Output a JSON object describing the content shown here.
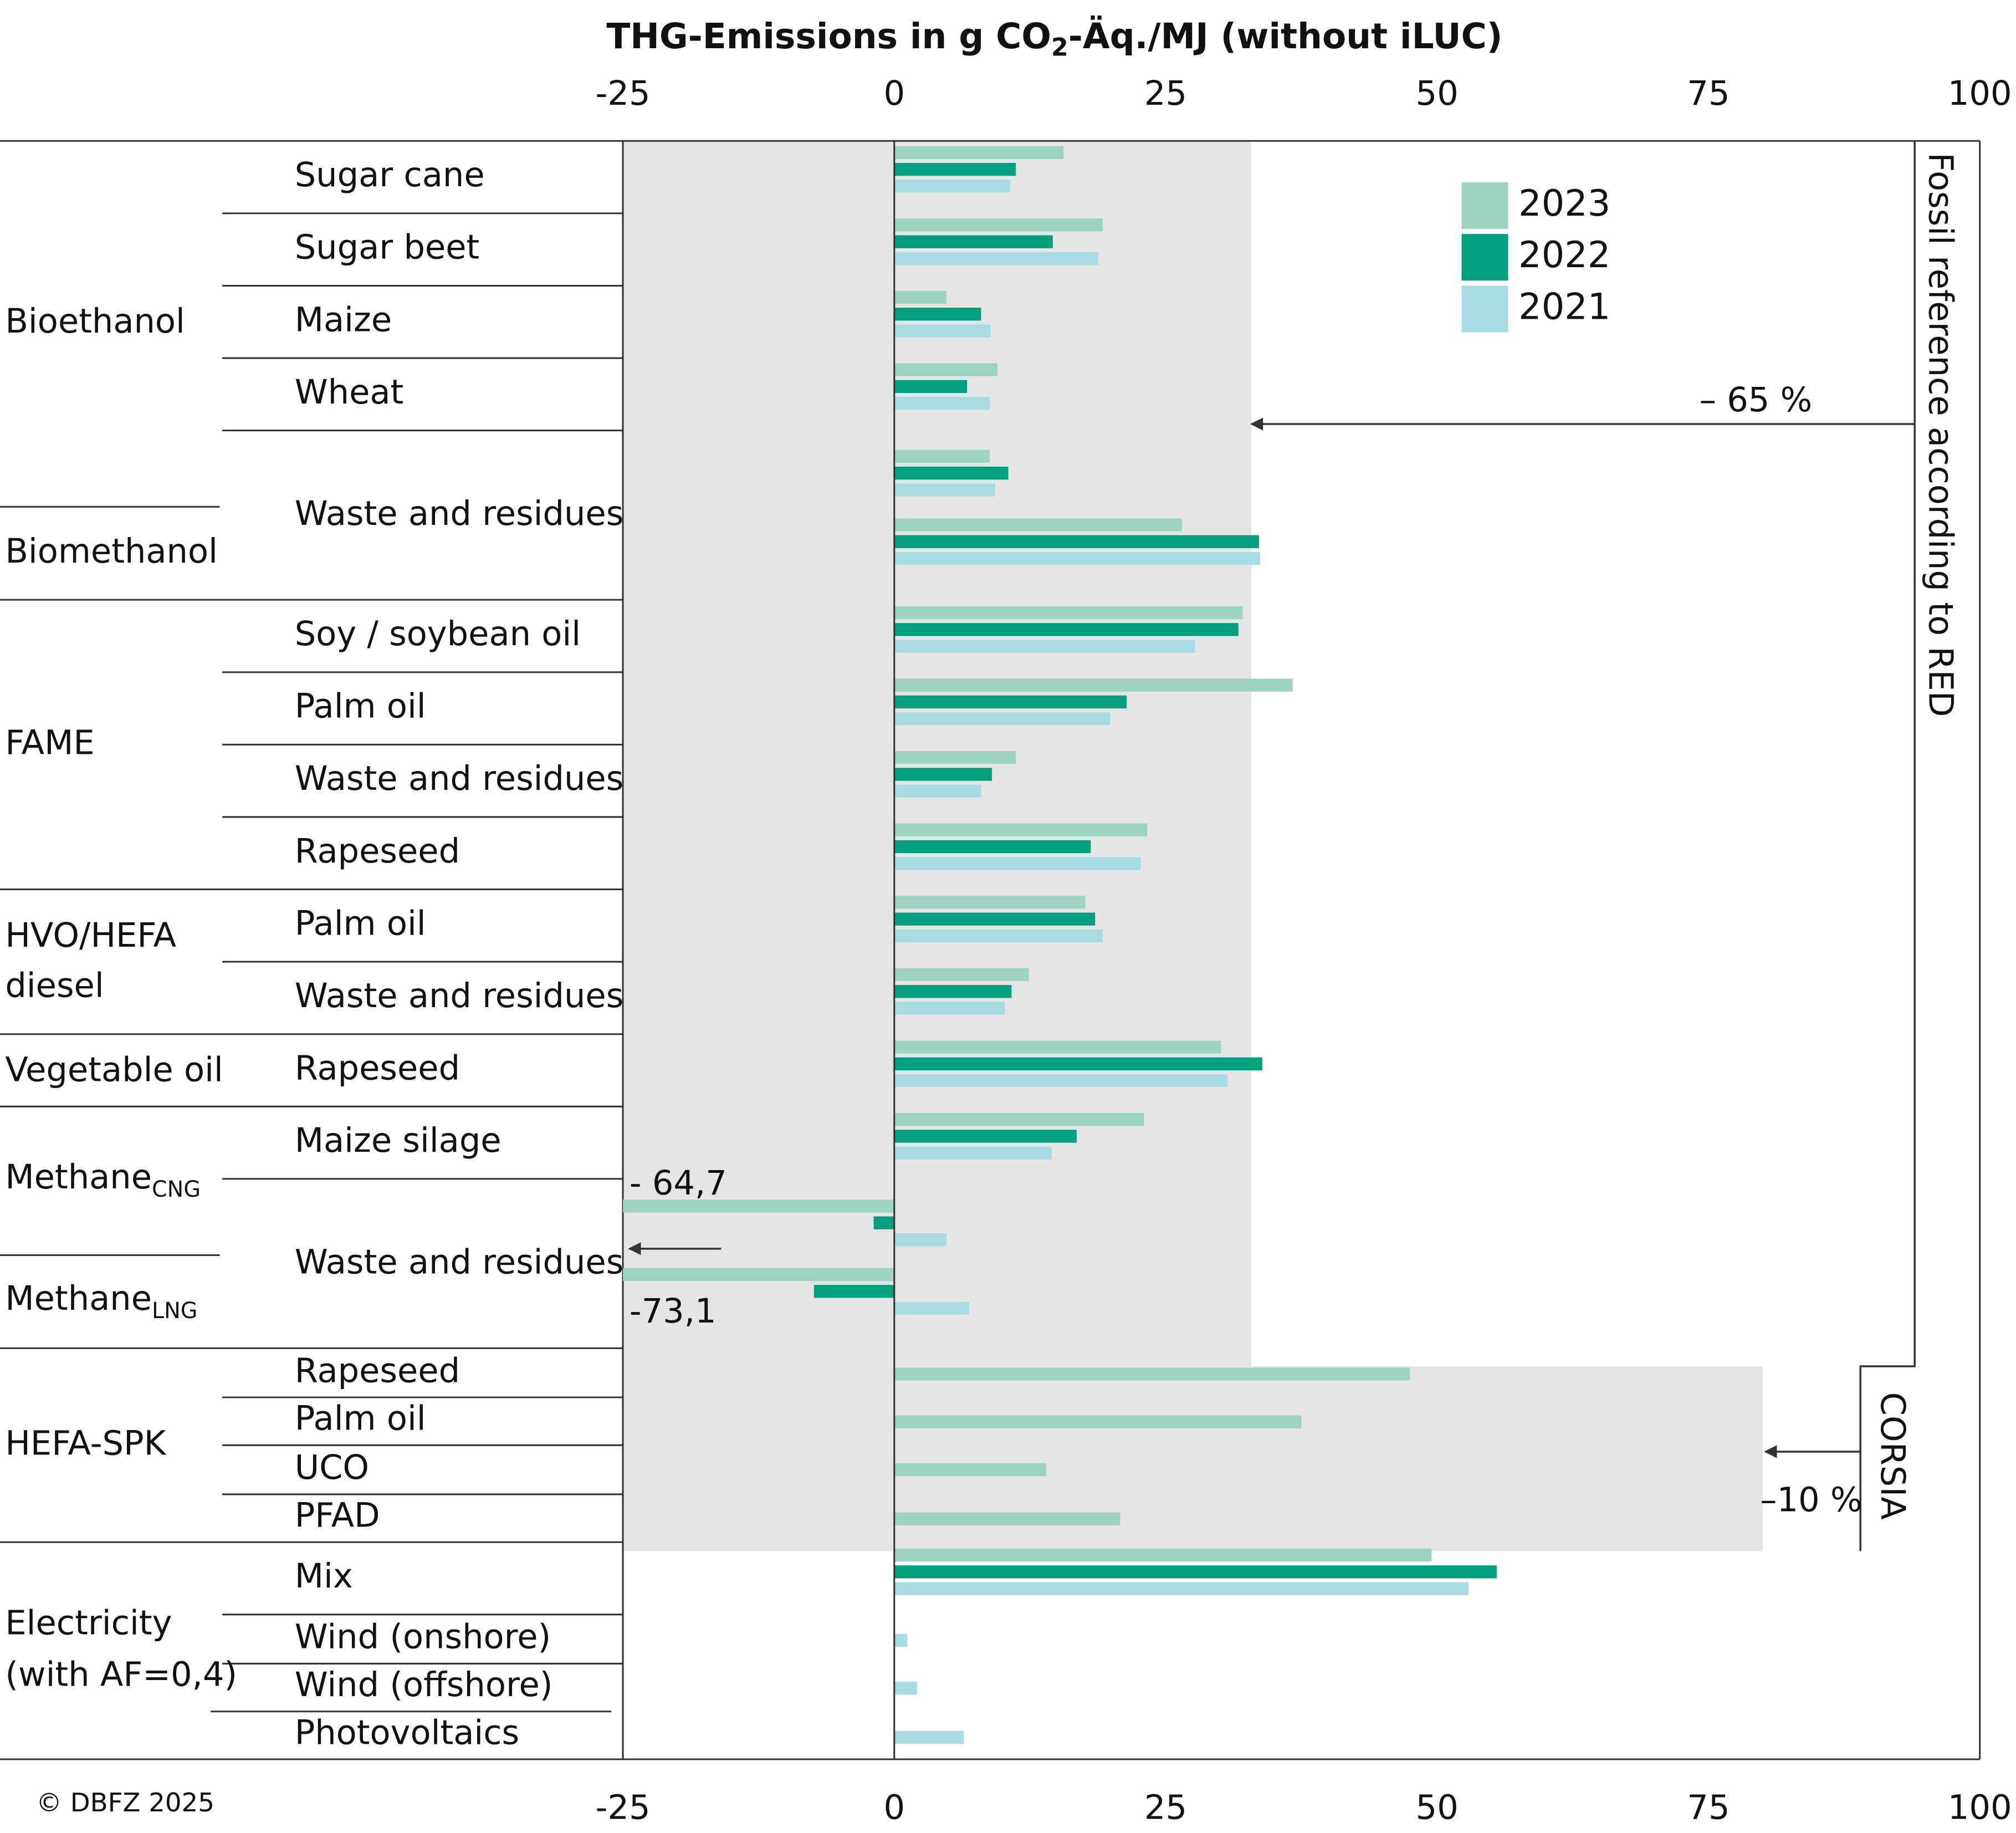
{
  "chart_data": {
    "type": "bar",
    "orientation": "horizontal",
    "title_parts": [
      "THG-Emissions in g CO",
      "2",
      "-Äq./MJ (without iLUC)"
    ],
    "categories": [
      "Sugar cane",
      "Sugar beet",
      "Maize",
      "Wheat",
      "Waste and residues",
      null,
      "Soy / soybean oil",
      "Palm oil",
      "Waste and residues",
      "Rapeseed",
      "Palm oil",
      "Waste and residues",
      "Rapeseed",
      "Maize silage",
      "Waste and residues",
      null,
      "Rapeseed",
      "Palm oil",
      "UCO",
      "PFAD",
      "Mix",
      "Wind (onshore)",
      "Wind (offshore)",
      "Photovoltaics"
    ],
    "groups": [
      {
        "lines": [
          "Bioethanol"
        ]
      },
      {
        "lines": [
          "Biomethanol"
        ]
      },
      {
        "lines": [
          "FAME"
        ]
      },
      {
        "lines": [
          "HVO/HEFA",
          "diesel"
        ]
      },
      {
        "lines": [
          "Vegetable oil"
        ]
      },
      {
        "lines": [
          "Methane"
        ],
        "subscript": "CNG"
      },
      {
        "lines": [
          "Methane"
        ],
        "subscript": "LNG"
      },
      {
        "lines": [
          "HEFA-SPK"
        ]
      },
      {
        "lines": [
          "Electricity",
          "(with AF=0,4)"
        ]
      }
    ],
    "series": [
      {
        "name": "2023",
        "color": "#9dd3c3",
        "values": [
          15.6,
          19.2,
          4.8,
          9.5,
          8.8,
          26.5,
          32.1,
          36.7,
          11.2,
          23.3,
          17.6,
          12.4,
          30.1,
          23.0,
          -64.7,
          -73.1,
          47.5,
          37.5,
          14.0,
          20.8,
          49.5,
          null,
          null,
          null
        ],
        "value_labels": [
          null,
          null,
          null,
          null,
          null,
          null,
          null,
          null,
          null,
          null,
          null,
          null,
          null,
          null,
          "- 64,7",
          "-73,1",
          null,
          null,
          null,
          null,
          null,
          null,
          null,
          null
        ]
      },
      {
        "name": "2022",
        "color": "#00a07e",
        "values": [
          11.2,
          14.6,
          8.0,
          6.7,
          10.5,
          33.6,
          31.7,
          21.4,
          9.0,
          18.1,
          18.5,
          10.8,
          33.9,
          16.8,
          -1.9,
          -7.4,
          null,
          null,
          null,
          null,
          55.5,
          null,
          null,
          null
        ]
      },
      {
        "name": "2021",
        "color": "#a9dbe3",
        "values": [
          10.7,
          18.8,
          8.9,
          8.8,
          9.3,
          33.7,
          27.7,
          19.9,
          8.0,
          22.7,
          19.2,
          10.2,
          30.7,
          14.5,
          4.8,
          6.9,
          null,
          null,
          null,
          null,
          52.9,
          1.2,
          2.1,
          6.4
        ]
      }
    ],
    "xlim": [
      -25,
      100
    ],
    "xticks": [
      -25,
      0,
      25,
      50,
      75,
      100
    ],
    "reference_lines": [
      {
        "label": "– 65 %",
        "value": 32.9
      },
      {
        "label": "–10 %",
        "value": 80
      }
    ],
    "fossil_reference": {
      "label": "Fossil reference according to RED",
      "value": 94
    },
    "corsia_reference": {
      "label": "CORSIA",
      "value": 89
    },
    "shade_color": "#e5e5e5",
    "legend": "top-right",
    "copyright": "© DBFZ 2025"
  }
}
